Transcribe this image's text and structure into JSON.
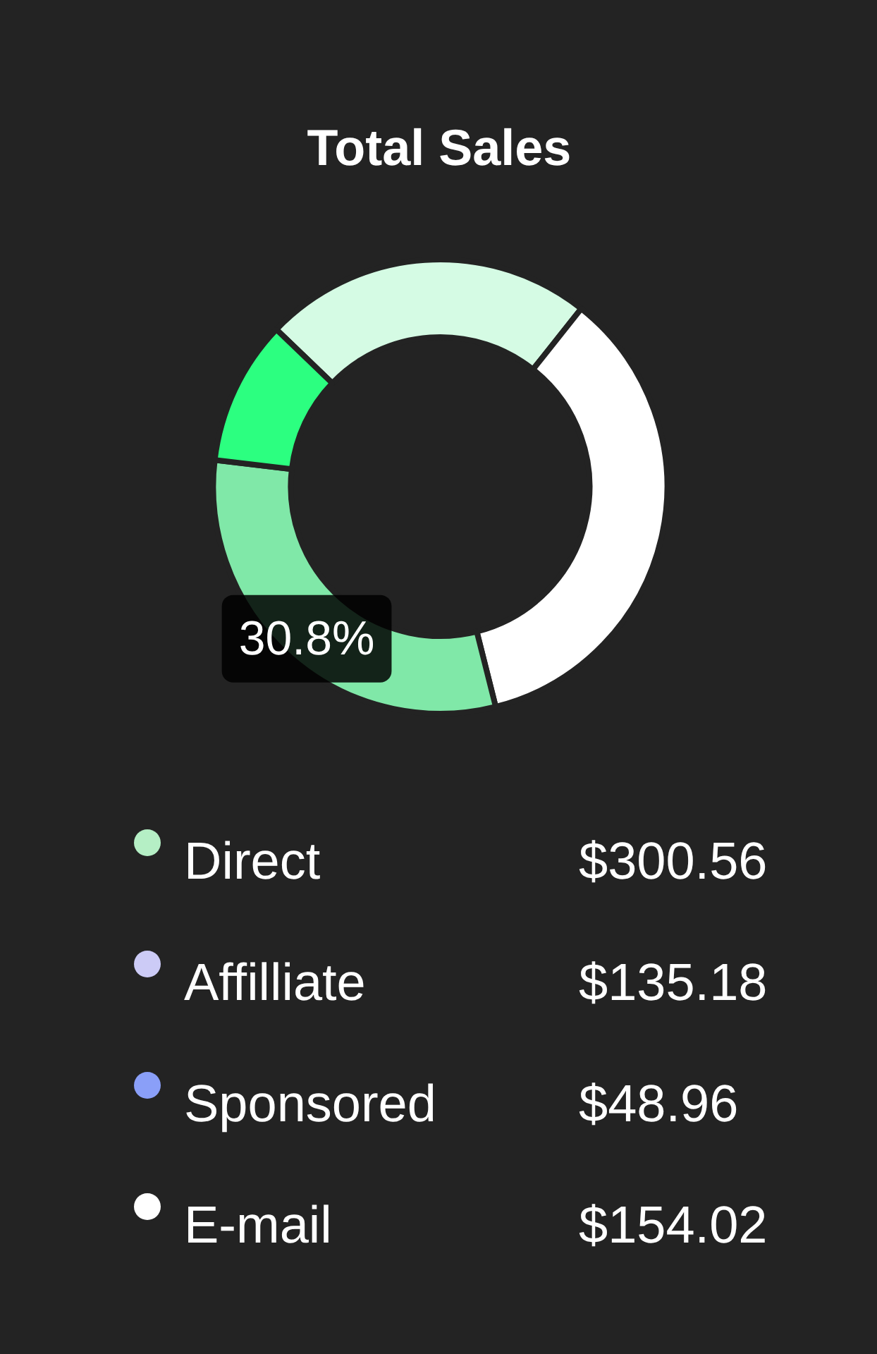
{
  "chart_data": [
    {
      "type": "donut",
      "title": "Total Sales",
      "categories": [
        null,
        null,
        null,
        null
      ],
      "values": [
        23.5,
        35.4,
        30.8,
        10.3
      ],
      "colors": [
        "#d5fbe4",
        "#ffffff",
        "#80e8a8",
        "#2cff80"
      ],
      "value_labels": [
        null,
        null,
        "30.8%",
        null
      ]
    },
    {
      "type": "other",
      "categories": [
        "Direct",
        "Affilliate",
        "Sponsored",
        "E-mail"
      ],
      "colors": [
        "#b5efc5",
        "#cccbf6",
        "#8a9ff8",
        "#ffffff"
      ],
      "value_labels": [
        "$300.56",
        "$135.18",
        "$48.96",
        "$154.02"
      ]
    }
  ]
}
